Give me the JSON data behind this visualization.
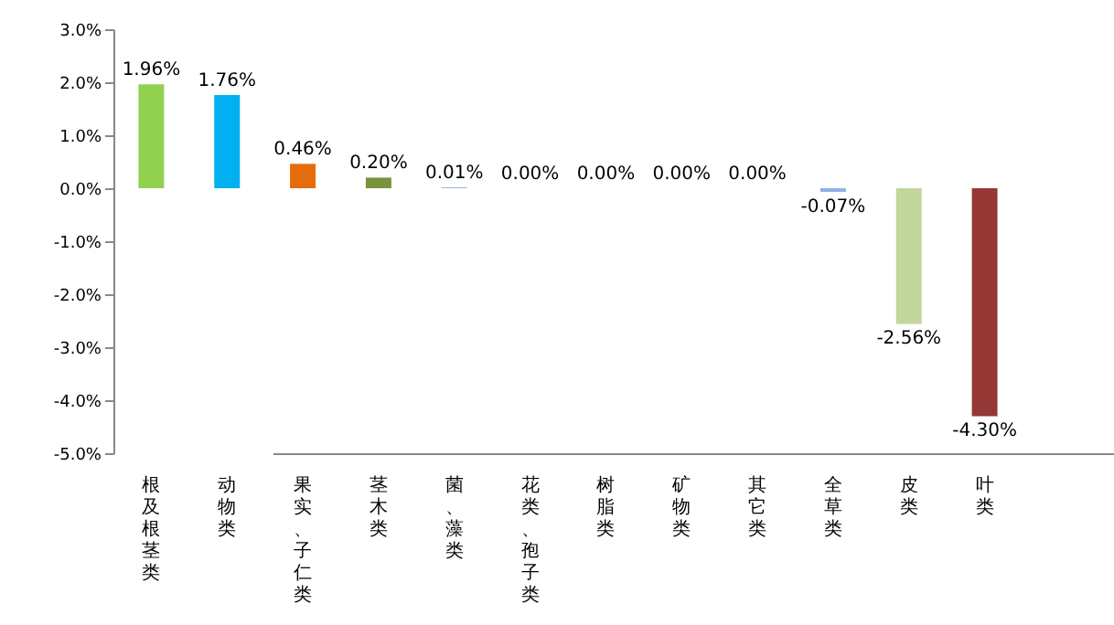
{
  "chart_data": {
    "type": "bar",
    "categories": [
      "根及根茎类",
      "动物类",
      "果实、子仁类",
      "茎木类",
      "菌、藻类",
      "花类、孢子类",
      "树脂类",
      "矿物类",
      "其它类",
      "全草类",
      "皮类",
      "叶类"
    ],
    "values": [
      1.96,
      1.76,
      0.46,
      0.2,
      0.01,
      0.0,
      0.0,
      0.0,
      0.0,
      -0.07,
      -2.56,
      -4.3
    ],
    "colors": [
      "#92d050",
      "#00b0f0",
      "#e46c0a",
      "#77933c",
      "#4f81bd",
      "#c0504d",
      "#8064a2",
      "#4bacc6",
      "#f79646",
      "#8eb4e3",
      "#c3d69b",
      "#953735"
    ],
    "value_labels": [
      "1.96%",
      "1.76%",
      "0.46%",
      "0.20%",
      "0.01%",
      "0.00%",
      "0.00%",
      "0.00%",
      "0.00%",
      "-0.07%",
      "-2.56%",
      "-4.30%"
    ],
    "ylim": [
      -5,
      3
    ],
    "yticks": [
      {
        "value": -5,
        "label": "-5.0%"
      },
      {
        "value": -4,
        "label": "-4.0%"
      },
      {
        "value": -3,
        "label": "-3.0%"
      },
      {
        "value": -2,
        "label": "-2.0%"
      },
      {
        "value": -1,
        "label": "-1.0%"
      },
      {
        "value": 0,
        "label": "0.0%"
      },
      {
        "value": 1,
        "label": "1.0%"
      },
      {
        "value": 2,
        "label": "2.0%"
      },
      {
        "value": 3,
        "label": "3.0%"
      }
    ],
    "grid": false
  }
}
